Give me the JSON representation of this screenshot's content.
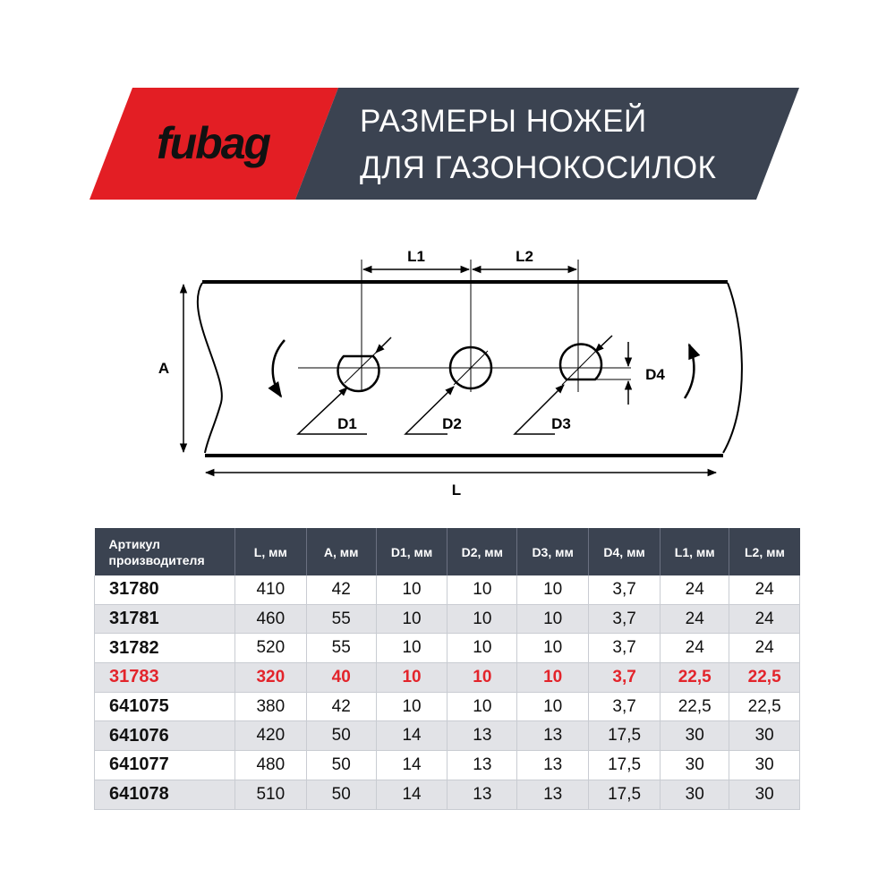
{
  "brand": {
    "logo_text": "fubag",
    "color": "#e31e24",
    "dark": "#3b4351"
  },
  "header": {
    "title_line1": "РАЗМЕРЫ НОЖЕЙ",
    "title_line2": "ДЛЯ ГАЗОНОКОСИЛОК"
  },
  "diagram": {
    "labels": {
      "L1": "L1",
      "L2": "L2",
      "A": "A",
      "L": "L",
      "D1": "D1",
      "D2": "D2",
      "D3": "D3",
      "D4": "D4"
    }
  },
  "table": {
    "headers": [
      "Артикул производителя",
      "L, мм",
      "A, мм",
      "D1, мм",
      "D2, мм",
      "D3, мм",
      "D4, мм",
      "L1, мм",
      "L2, мм"
    ],
    "highlight_color": "#e3242b",
    "rows": [
      {
        "cells": [
          "31780",
          "410",
          "42",
          "10",
          "10",
          "10",
          "3,7",
          "24",
          "24"
        ],
        "highlighted": false
      },
      {
        "cells": [
          "31781",
          "460",
          "55",
          "10",
          "10",
          "10",
          "3,7",
          "24",
          "24"
        ],
        "highlighted": false
      },
      {
        "cells": [
          "31782",
          "520",
          "55",
          "10",
          "10",
          "10",
          "3,7",
          "24",
          "24"
        ],
        "highlighted": false
      },
      {
        "cells": [
          "31783",
          "320",
          "40",
          "10",
          "10",
          "10",
          "3,7",
          "22,5",
          "22,5"
        ],
        "highlighted": true
      },
      {
        "cells": [
          "641075",
          "380",
          "42",
          "10",
          "10",
          "10",
          "3,7",
          "22,5",
          "22,5"
        ],
        "highlighted": false
      },
      {
        "cells": [
          "641076",
          "420",
          "50",
          "14",
          "13",
          "13",
          "17,5",
          "30",
          "30"
        ],
        "highlighted": false
      },
      {
        "cells": [
          "641077",
          "480",
          "50",
          "14",
          "13",
          "13",
          "17,5",
          "30",
          "30"
        ],
        "highlighted": false
      },
      {
        "cells": [
          "641078",
          "510",
          "50",
          "14",
          "13",
          "13",
          "17,5",
          "30",
          "30"
        ],
        "highlighted": false
      }
    ]
  }
}
